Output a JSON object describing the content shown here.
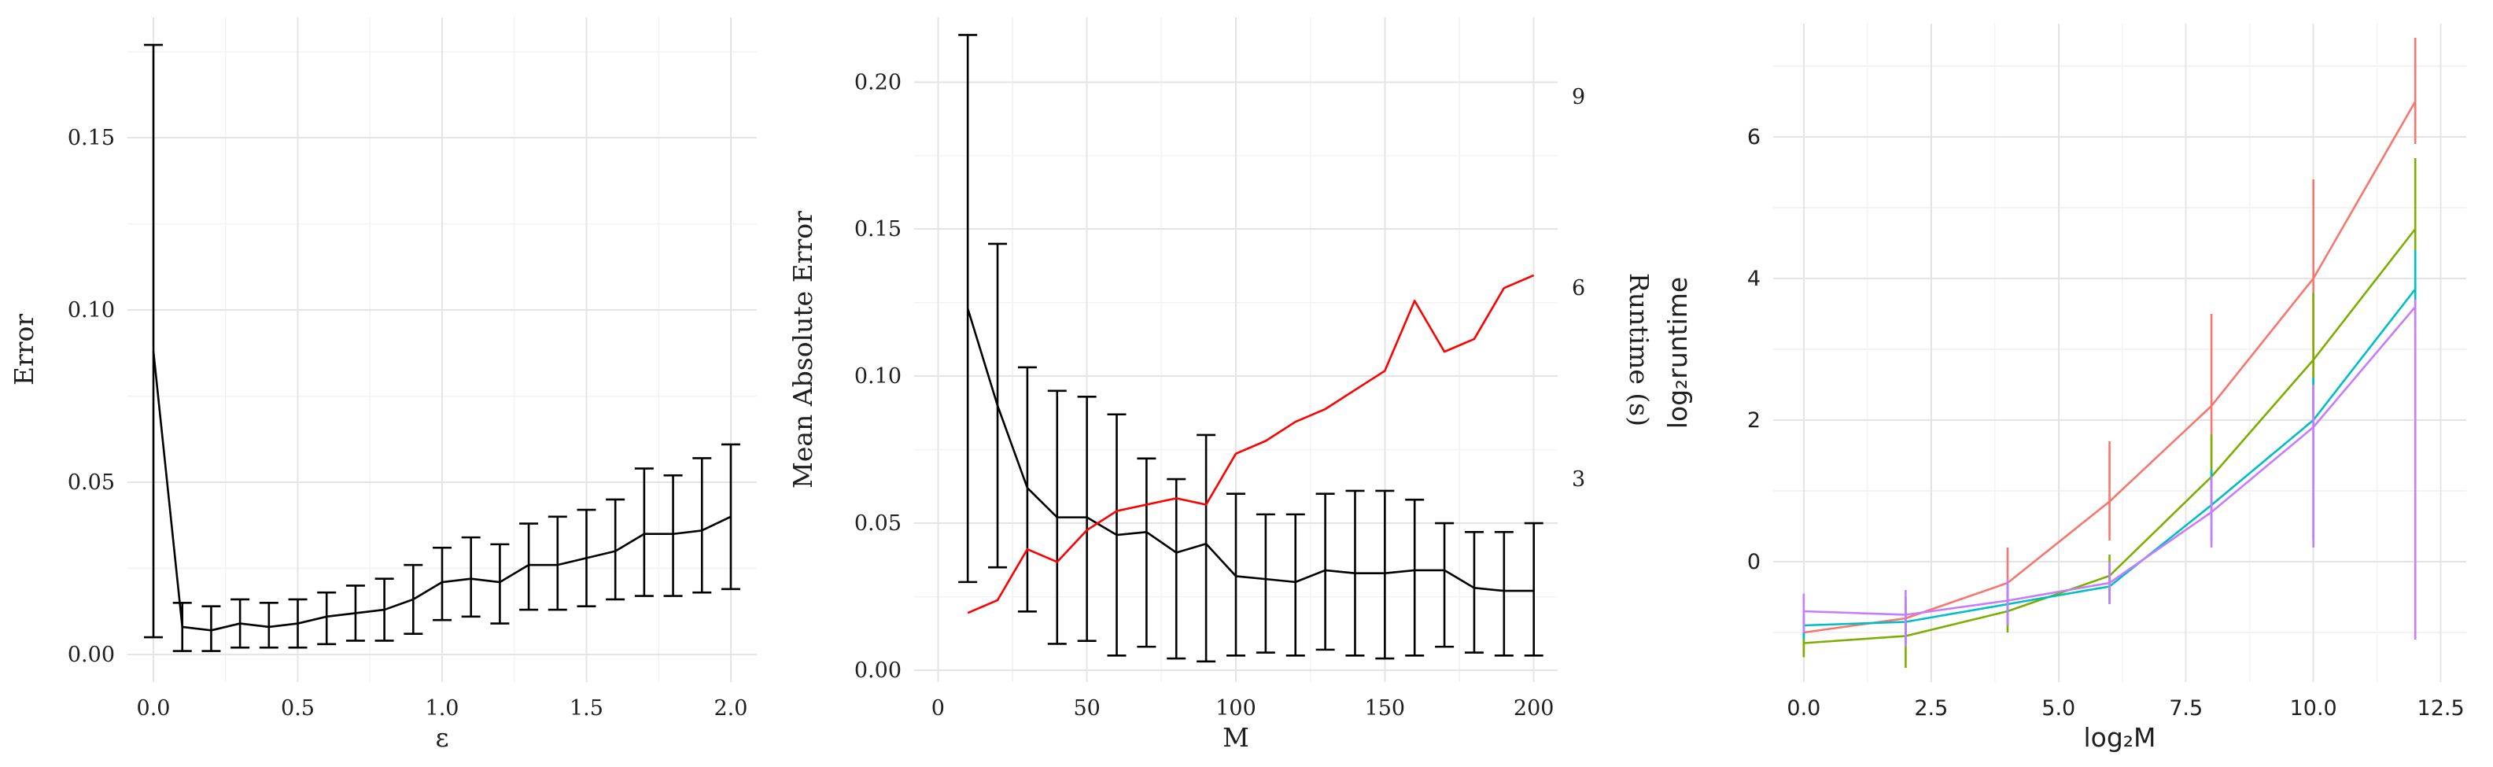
{
  "page": {
    "background": "#ffffff"
  },
  "chart_data": [
    {
      "type": "line",
      "title": "",
      "xlabel": "ε",
      "ylabel": "Error",
      "xlim": [
        -0.09,
        2.09
      ],
      "ylim": [
        -0.008,
        0.185
      ],
      "xticks": [
        0.0,
        0.5,
        1.0,
        1.5,
        2.0
      ],
      "xtick_labels": [
        "0.0",
        "0.5",
        "1.0",
        "1.5",
        "2.0"
      ],
      "yticks": [
        0.0,
        0.05,
        0.1,
        0.15
      ],
      "ytick_labels": [
        "0.00",
        "0.05",
        "0.10",
        "0.15"
      ],
      "grid": "major+minor",
      "legend": "none",
      "x": [
        0.0,
        0.1,
        0.2,
        0.3,
        0.4,
        0.5,
        0.6,
        0.7,
        0.8,
        0.9,
        1.0,
        1.1,
        1.2,
        1.3,
        1.4,
        1.5,
        1.6,
        1.7,
        1.8,
        1.9,
        2.0
      ],
      "series": [
        {
          "name": "error",
          "color": "#000000",
          "caps": true,
          "values": [
            0.088,
            0.008,
            0.007,
            0.009,
            0.008,
            0.009,
            0.011,
            0.012,
            0.013,
            0.016,
            0.021,
            0.022,
            0.021,
            0.026,
            0.026,
            0.028,
            0.03,
            0.035,
            0.035,
            0.036,
            0.04
          ],
          "lower": [
            0.005,
            0.001,
            0.001,
            0.002,
            0.002,
            0.002,
            0.003,
            0.004,
            0.004,
            0.006,
            0.01,
            0.011,
            0.009,
            0.013,
            0.013,
            0.014,
            0.016,
            0.017,
            0.017,
            0.018,
            0.019
          ],
          "upper": [
            0.177,
            0.015,
            0.014,
            0.016,
            0.015,
            0.016,
            0.018,
            0.02,
            0.022,
            0.026,
            0.031,
            0.034,
            0.032,
            0.038,
            0.04,
            0.042,
            0.045,
            0.054,
            0.052,
            0.057,
            0.061
          ]
        }
      ]
    },
    {
      "type": "line",
      "title": "",
      "xlabel": "M",
      "ylabel": "Mean Absolute Error",
      "y2label": "Runtime (s)",
      "xlim": [
        -8,
        208
      ],
      "ylim": [
        -0.004,
        0.222
      ],
      "y2lim": [
        -0.185,
        10.25
      ],
      "xticks": [
        0,
        50,
        100,
        150,
        200
      ],
      "xtick_labels": [
        "0",
        "50",
        "100",
        "150",
        "200"
      ],
      "yticks": [
        0.0,
        0.05,
        0.1,
        0.15,
        0.2
      ],
      "ytick_labels": [
        "0.00",
        "0.05",
        "0.10",
        "0.15",
        "0.20"
      ],
      "y2ticks": [
        3,
        6,
        9
      ],
      "y2tick_labels": [
        "3",
        "6",
        "9"
      ],
      "grid": "major+minor",
      "legend": "none",
      "x": [
        10,
        20,
        30,
        40,
        50,
        60,
        70,
        80,
        90,
        100,
        110,
        120,
        130,
        140,
        150,
        160,
        170,
        180,
        190,
        200
      ],
      "series": [
        {
          "name": "mean-absolute-error",
          "axis": "y",
          "color": "#000000",
          "caps": true,
          "values": [
            0.123,
            0.09,
            0.062,
            0.052,
            0.052,
            0.046,
            0.047,
            0.04,
            0.043,
            0.032,
            0.031,
            0.03,
            0.034,
            0.033,
            0.033,
            0.034,
            0.034,
            0.028,
            0.027,
            0.027
          ],
          "lower": [
            0.03,
            0.035,
            0.02,
            0.009,
            0.01,
            0.005,
            0.008,
            0.004,
            0.003,
            0.005,
            0.006,
            0.005,
            0.007,
            0.005,
            0.004,
            0.005,
            0.008,
            0.006,
            0.005,
            0.005
          ],
          "upper": [
            0.216,
            0.145,
            0.103,
            0.095,
            0.093,
            0.087,
            0.072,
            0.065,
            0.08,
            0.06,
            0.053,
            0.053,
            0.06,
            0.061,
            0.061,
            0.058,
            0.05,
            0.047,
            0.047,
            0.05
          ]
        },
        {
          "name": "runtime",
          "axis": "y2",
          "color": "#ff0000",
          "values": [
            0.9,
            1.1,
            1.9,
            1.7,
            2.2,
            2.5,
            2.6,
            2.7,
            2.6,
            3.4,
            3.6,
            3.9,
            4.1,
            4.4,
            4.7,
            5.8,
            5.0,
            5.2,
            6.0,
            6.2
          ]
        }
      ]
    },
    {
      "type": "line",
      "title": "",
      "xlabel": "log₂M",
      "ylabel": "log₂runtime",
      "xlim": [
        -0.6,
        13.0
      ],
      "ylim": [
        -1.7,
        7.6
      ],
      "xticks": [
        0.0,
        2.5,
        5.0,
        7.5,
        10.0,
        12.5
      ],
      "xtick_labels": [
        "0.0",
        "2.5",
        "5.0",
        "7.5",
        "10.0",
        "12.5"
      ],
      "yticks": [
        0,
        2,
        4,
        6
      ],
      "ytick_labels": [
        "0",
        "2",
        "4",
        "6"
      ],
      "grid": "major+minor",
      "legend": "none",
      "x": [
        0,
        2,
        4,
        6,
        8,
        10,
        12
      ],
      "series": [
        {
          "name": "series-red",
          "color": "#F8766D",
          "caps": false,
          "values": [
            -1.0,
            -0.8,
            -0.3,
            0.85,
            2.2,
            4.0,
            6.5
          ],
          "lower": [
            -1.3,
            -1.1,
            -0.8,
            0.3,
            1.0,
            2.1,
            5.9
          ],
          "upper": [
            -0.7,
            -0.5,
            0.2,
            1.7,
            3.5,
            5.4,
            7.4
          ]
        },
        {
          "name": "series-green",
          "color": "#7CAE00",
          "caps": false,
          "values": [
            -1.15,
            -1.05,
            -0.7,
            -0.2,
            1.2,
            2.85,
            4.7
          ],
          "lower": [
            -1.35,
            -1.5,
            -1.0,
            -0.55,
            0.6,
            1.9,
            3.0
          ],
          "upper": [
            -0.95,
            -0.8,
            -0.4,
            0.1,
            1.8,
            3.8,
            5.7
          ]
        },
        {
          "name": "series-teal",
          "color": "#00BFC4",
          "caps": false,
          "values": [
            -0.9,
            -0.85,
            -0.6,
            -0.35,
            0.8,
            2.0,
            3.85
          ],
          "lower": [
            -1.1,
            -1.15,
            -0.9,
            -0.6,
            0.3,
            0.3,
            3.3
          ],
          "upper": [
            -0.7,
            -0.6,
            -0.3,
            -0.1,
            1.3,
            2.6,
            4.4
          ]
        },
        {
          "name": "series-purple",
          "color": "#C77CFF",
          "caps": false,
          "values": [
            -0.7,
            -0.75,
            -0.55,
            -0.3,
            0.7,
            1.9,
            3.6
          ],
          "lower": [
            -1.0,
            -1.2,
            -0.9,
            -0.6,
            0.2,
            0.2,
            -1.1
          ],
          "upper": [
            -0.45,
            -0.4,
            -0.25,
            0.0,
            1.2,
            2.5,
            3.7
          ]
        }
      ]
    }
  ]
}
